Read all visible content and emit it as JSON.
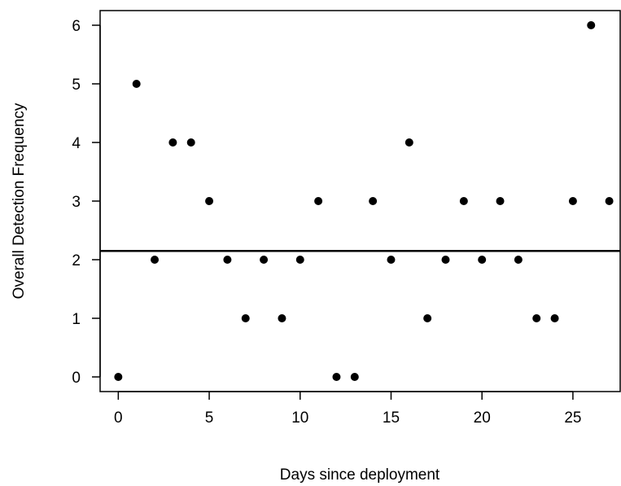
{
  "chart_data": {
    "type": "scatter",
    "xlabel": "Days since deployment",
    "ylabel": "Overall Detection Frequency",
    "xlim": [
      -1,
      27.6
    ],
    "ylim": [
      -0.25,
      6.25
    ],
    "x_ticks": [
      0,
      5,
      10,
      15,
      20,
      25
    ],
    "y_ticks": [
      0,
      1,
      2,
      3,
      4,
      5,
      6
    ],
    "x_tick_labels": [
      "0",
      "5",
      "10",
      "15",
      "20",
      "25"
    ],
    "y_tick_labels": [
      "0",
      "1",
      "2",
      "3",
      "4",
      "5",
      "6"
    ],
    "grid": false,
    "point_color": "#000000",
    "reference_line": {
      "orientation": "horizontal",
      "y": 2.15,
      "color": "#000000"
    },
    "points": [
      {
        "x": 0,
        "y": 0
      },
      {
        "x": 1,
        "y": 5
      },
      {
        "x": 2,
        "y": 2
      },
      {
        "x": 3,
        "y": 4
      },
      {
        "x": 4,
        "y": 4
      },
      {
        "x": 5,
        "y": 3
      },
      {
        "x": 6,
        "y": 2
      },
      {
        "x": 7,
        "y": 1
      },
      {
        "x": 8,
        "y": 2
      },
      {
        "x": 9,
        "y": 1
      },
      {
        "x": 10,
        "y": 2
      },
      {
        "x": 11,
        "y": 3
      },
      {
        "x": 12,
        "y": 0
      },
      {
        "x": 13,
        "y": 0
      },
      {
        "x": 14,
        "y": 3
      },
      {
        "x": 15,
        "y": 2
      },
      {
        "x": 16,
        "y": 4
      },
      {
        "x": 17,
        "y": 1
      },
      {
        "x": 18,
        "y": 2
      },
      {
        "x": 19,
        "y": 3
      },
      {
        "x": 20,
        "y": 2
      },
      {
        "x": 21,
        "y": 3
      },
      {
        "x": 22,
        "y": 2
      },
      {
        "x": 23,
        "y": 1
      },
      {
        "x": 24,
        "y": 1
      },
      {
        "x": 25,
        "y": 3
      },
      {
        "x": 26,
        "y": 6
      },
      {
        "x": 27,
        "y": 3
      }
    ]
  }
}
